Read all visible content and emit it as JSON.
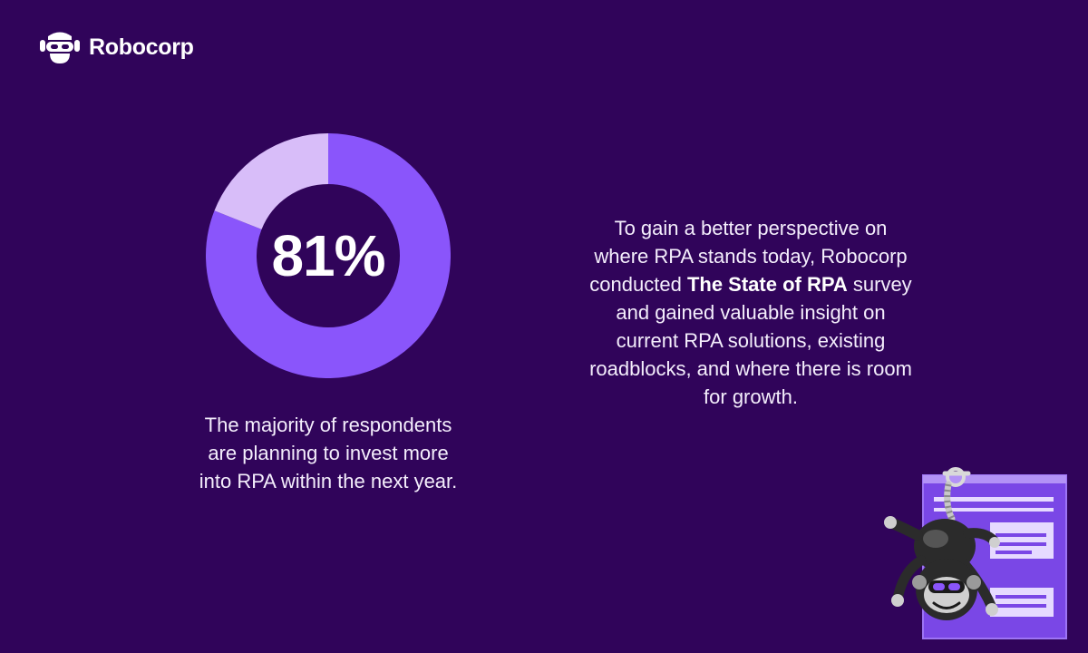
{
  "brand": {
    "name": "Robocorp",
    "logo_icon": "robot-head-icon"
  },
  "colors": {
    "background": "#30045a",
    "accent": "#8a55fb",
    "accent_light": "#d8bdf9"
  },
  "chart_data": {
    "type": "pie",
    "style": "donut",
    "slices": [
      {
        "label": "",
        "value": 81,
        "color": "#8a55fb"
      },
      {
        "label": "",
        "value": 19,
        "color": "#d8bdf9"
      }
    ],
    "center_label": "81%",
    "title": "",
    "legend": "none"
  },
  "caption": "The majority of respondents are planning to invest more into RPA within the next year.",
  "intro": {
    "before": "To gain a better perspective on where RPA stands today, Robocorp conducted ",
    "highlight": "The State of RPA",
    "after": " survey and gained valuable insight on current RPA solutions, existing roadblocks, and where there is room for growth."
  },
  "illustration": {
    "icon": "hanging-robot-monkey-icon"
  }
}
